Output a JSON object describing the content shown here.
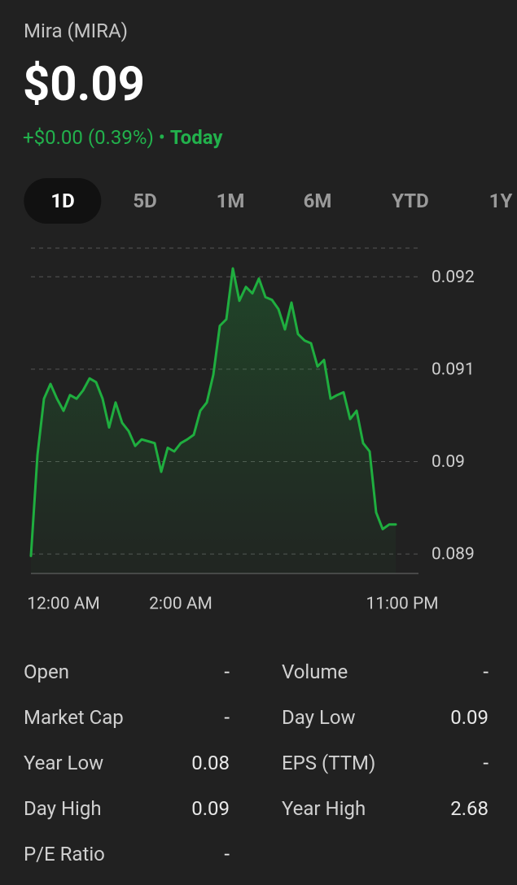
{
  "header": {
    "name": "Mira (MIRA)",
    "price": "$0.09",
    "change": "+$0.00 (0.39%)",
    "period": "Today"
  },
  "tabs": {
    "items": [
      "1D",
      "5D",
      "1M",
      "6M",
      "YTD",
      "1Y"
    ],
    "selected": 0
  },
  "chart_data": {
    "type": "line",
    "color": "#1fae3f",
    "grid": true,
    "categories": [
      null,
      null,
      null,
      null,
      null,
      "12:00 AM",
      null,
      null,
      null,
      null,
      null,
      null,
      null,
      null,
      null,
      null,
      null,
      null,
      null,
      null,
      null,
      null,
      null,
      "2:00 AM",
      null,
      null,
      null,
      null,
      null,
      null,
      null,
      null,
      null,
      null,
      null,
      null,
      null,
      null,
      null,
      null,
      null,
      null,
      null,
      null,
      null,
      null,
      null,
      null,
      null,
      null,
      null,
      null,
      null,
      null,
      null,
      null,
      "11:00 PM"
    ],
    "values": [
      0.08898,
      0.09007,
      0.09068,
      0.09084,
      0.09068,
      0.09055,
      0.09072,
      0.09068,
      0.09077,
      0.0909,
      0.09086,
      0.09068,
      0.09037,
      0.09064,
      0.09042,
      0.09033,
      0.09017,
      0.09024,
      0.09022,
      0.0902,
      0.08989,
      0.09015,
      0.09011,
      0.0902,
      0.09024,
      0.09029,
      0.09055,
      0.09064,
      0.09094,
      0.09147,
      0.09154,
      0.09209,
      0.09174,
      0.09189,
      0.09182,
      0.09198,
      0.09178,
      0.09175,
      0.09165,
      0.09143,
      0.09172,
      0.09138,
      0.09131,
      0.09128,
      0.09103,
      0.0911,
      0.09068,
      0.09072,
      0.09075,
      0.09046,
      0.09055,
      0.0902,
      0.09011,
      0.08945,
      0.08927,
      0.08932,
      0.08932
    ],
    "ylim": [
      0.08879,
      0.09231
    ],
    "yticks": [
      0.089,
      0.09,
      0.091,
      0.092
    ]
  },
  "stats": [
    [
      {
        "label": "Open",
        "value": "-"
      },
      {
        "label": "Volume",
        "value": "-"
      }
    ],
    [
      {
        "label": "Market Cap",
        "value": "-"
      },
      {
        "label": "Day Low",
        "value": "0.09"
      }
    ],
    [
      {
        "label": "Year Low",
        "value": "0.08"
      },
      {
        "label": "EPS (TTM)",
        "value": "-"
      }
    ],
    [
      {
        "label": "Day High",
        "value": "0.09"
      },
      {
        "label": "Year High",
        "value": "2.68"
      }
    ],
    [
      {
        "label": "P/E Ratio",
        "value": "-"
      }
    ]
  ]
}
